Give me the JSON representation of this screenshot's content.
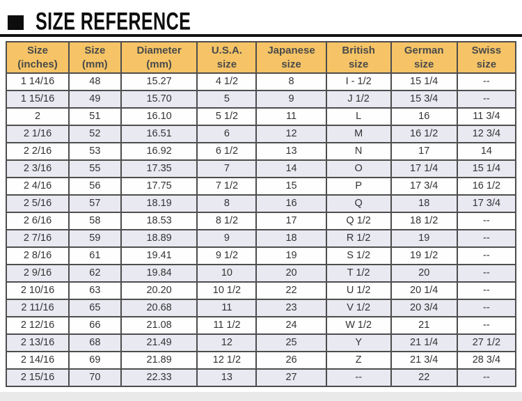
{
  "title": {
    "text": "SIZE REFERENCE"
  },
  "colors": {
    "header_bg": "#f6c466",
    "alt_row_bg": "#e9e9f2",
    "border": "#4d4d4d",
    "title": "#0d0d0d",
    "cell_text": "#333333"
  },
  "table": {
    "columns": [
      {
        "line1": "Size",
        "line2": "(inches)"
      },
      {
        "line1": "Size",
        "line2": "(mm)"
      },
      {
        "line1": "Diameter",
        "line2": "(mm)"
      },
      {
        "line1": "U.S.A.",
        "line2": "size"
      },
      {
        "line1": "Japanese",
        "line2": "size"
      },
      {
        "line1": "British",
        "line2": "size"
      },
      {
        "line1": "German",
        "line2": "size"
      },
      {
        "line1": "Swiss",
        "line2": "size"
      }
    ],
    "rows": [
      [
        "1 14/16",
        "48",
        "15.27",
        "4 1/2",
        "8",
        "I - 1/2",
        "15 1/4",
        "--"
      ],
      [
        "1 15/16",
        "49",
        "15.70",
        "5",
        "9",
        "J 1/2",
        "15 3/4",
        "--"
      ],
      [
        "2",
        "51",
        "16.10",
        "5 1/2",
        "11",
        "L",
        "16",
        "11 3/4"
      ],
      [
        "2 1/16",
        "52",
        "16.51",
        "6",
        "12",
        "M",
        "16 1/2",
        "12 3/4"
      ],
      [
        "2 2/16",
        "53",
        "16.92",
        "6 1/2",
        "13",
        "N",
        "17",
        "14"
      ],
      [
        "2 3/16",
        "55",
        "17.35",
        "7",
        "14",
        "O",
        "17 1/4",
        "15 1/4"
      ],
      [
        "2 4/16",
        "56",
        "17.75",
        "7 1/2",
        "15",
        "P",
        "17 3/4",
        "16 1/2"
      ],
      [
        "2 5/16",
        "57",
        "18.19",
        "8",
        "16",
        "Q",
        "18",
        "17 3/4"
      ],
      [
        "2 6/16",
        "58",
        "18.53",
        "8 1/2",
        "17",
        "Q 1/2",
        "18 1/2",
        "--"
      ],
      [
        "2 7/16",
        "59",
        "18.89",
        "9",
        "18",
        "R 1/2",
        "19",
        "--"
      ],
      [
        "2 8/16",
        "61",
        "19.41",
        "9 1/2",
        "19",
        "S 1/2",
        "19 1/2",
        "--"
      ],
      [
        "2 9/16",
        "62",
        "19.84",
        "10",
        "20",
        "T 1/2",
        "20",
        "--"
      ],
      [
        "2 10/16",
        "63",
        "20.20",
        "10 1/2",
        "22",
        "U 1/2",
        "20 1/4",
        "--"
      ],
      [
        "2 11/16",
        "65",
        "20.68",
        "11",
        "23",
        "V 1/2",
        "20 3/4",
        "--"
      ],
      [
        "2 12/16",
        "66",
        "21.08",
        "11 1/2",
        "24",
        "W 1/2",
        "21",
        "--"
      ],
      [
        "2 13/16",
        "68",
        "21.49",
        "12",
        "25",
        "Y",
        "21 1/4",
        "27 1/2"
      ],
      [
        "2 14/16",
        "69",
        "21.89",
        "12 1/2",
        "26",
        "Z",
        "21 3/4",
        "28 3/4"
      ],
      [
        "2 15/16",
        "70",
        "22.33",
        "13",
        "27",
        "--",
        "22",
        "--"
      ]
    ]
  }
}
